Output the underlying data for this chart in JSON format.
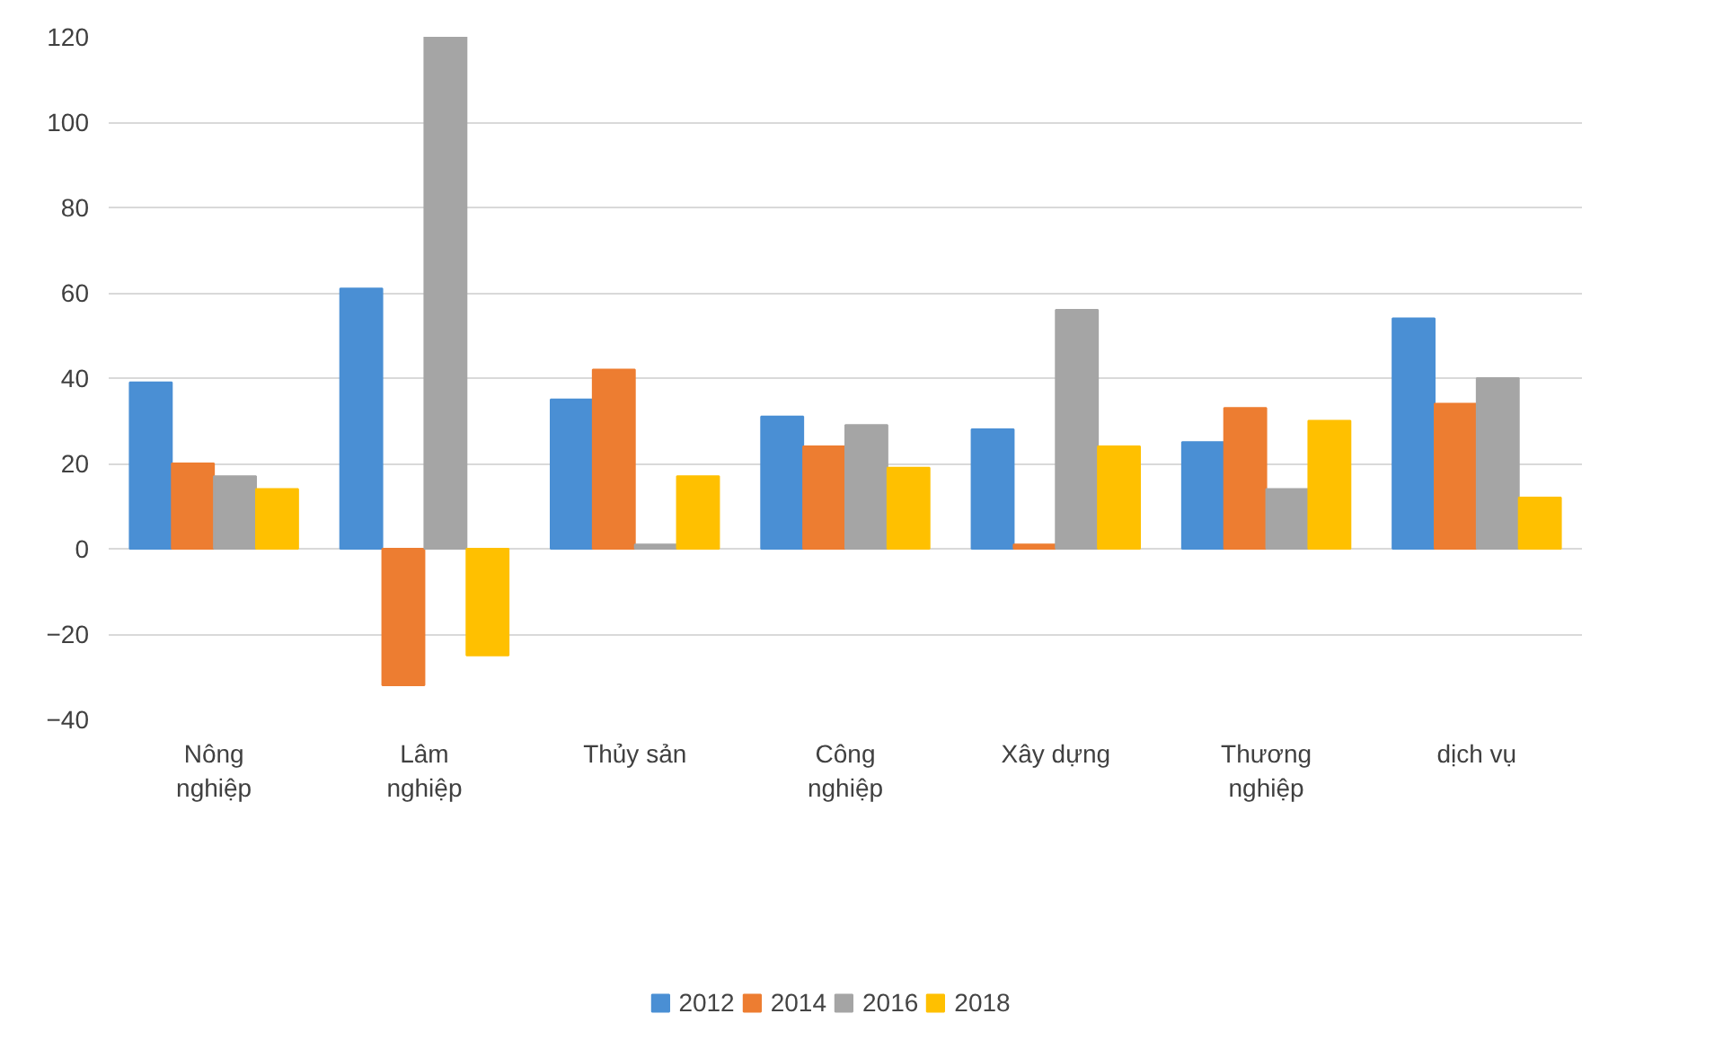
{
  "chart_data": {
    "type": "bar",
    "categories": [
      "Nông\nnghiệp",
      "Lâm\nnghiệp",
      "Thủy sản",
      "Công\nnghiệp",
      "Xây dựng",
      "Thương\nnghiệp",
      "dịch vụ"
    ],
    "series": [
      {
        "name": "2012",
        "color": "#4a8fd4",
        "values": [
          39,
          61,
          35,
          31,
          28,
          25,
          54
        ]
      },
      {
        "name": "2014",
        "color": "#ed7d31",
        "values": [
          20,
          -32,
          42,
          24,
          1,
          33,
          34
        ]
      },
      {
        "name": "2016",
        "color": "#a5a5a5",
        "values": [
          17,
          120,
          1,
          29,
          56,
          14,
          40
        ]
      },
      {
        "name": "2018",
        "color": "#ffc000",
        "values": [
          14,
          -25,
          17,
          19,
          24,
          30,
          12
        ]
      }
    ],
    "ylim": [
      -40,
      120
    ],
    "yticks": [
      -40,
      -20,
      0,
      20,
      40,
      60,
      80,
      100,
      120
    ],
    "grid": "y",
    "legend": "bottom"
  }
}
